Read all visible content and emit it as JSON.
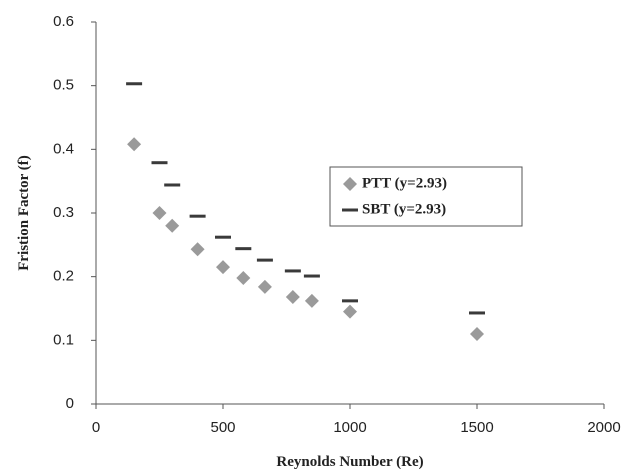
{
  "chart_data": {
    "type": "scatter",
    "xlabel": "Reynolds Number (Re)",
    "ylabel": "Fristion Factor (f)",
    "xlim": [
      0,
      2000
    ],
    "xticks": [
      0,
      500,
      1000,
      1500,
      2000
    ],
    "ylim": [
      0,
      0.6
    ],
    "yticks": [
      0,
      0.1,
      0.2,
      0.3,
      0.4,
      0.5,
      0.6
    ],
    "legend_position": "right",
    "series": [
      {
        "name": "PTT (y=2.93)",
        "color": "#9a9a9a",
        "marker": "diamond",
        "x": [
          150,
          250,
          300,
          400,
          500,
          580,
          665,
          775,
          850,
          1000,
          1500
        ],
        "values": [
          0.408,
          0.3,
          0.28,
          0.243,
          0.215,
          0.198,
          0.184,
          0.168,
          0.162,
          0.145,
          0.11
        ]
      },
      {
        "name": "SBT (y=2.93)",
        "color": "#3a3a3a",
        "marker": "dash",
        "x": [
          150,
          250,
          300,
          400,
          500,
          580,
          665,
          775,
          850,
          1000,
          1500
        ],
        "values": [
          0.503,
          0.379,
          0.344,
          0.295,
          0.262,
          0.244,
          0.226,
          0.209,
          0.201,
          0.162,
          0.143
        ]
      }
    ]
  }
}
